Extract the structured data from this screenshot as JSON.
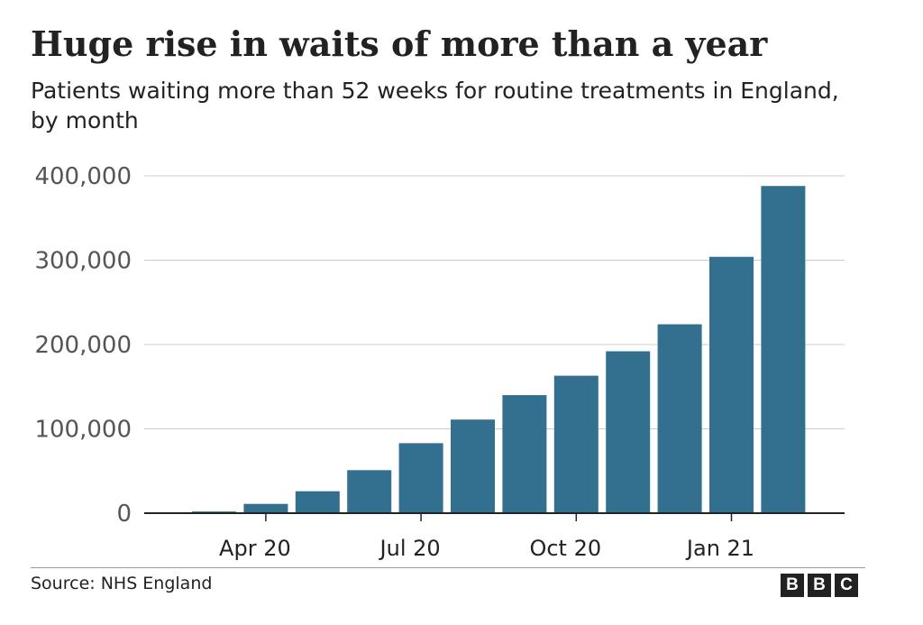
{
  "header": {
    "title": "Huge rise in waits of more than a year",
    "subtitle": "Patients waiting more than 52 weeks for routine treatments in England, by month"
  },
  "footer": {
    "source": "Source: NHS England",
    "logo_letters": [
      "B",
      "B",
      "C"
    ]
  },
  "colors": {
    "bar": "#336f8e",
    "grid": "#cccccc",
    "axis": "#222222",
    "text": "#222222",
    "tick_text": "#555555"
  },
  "chart_data": {
    "type": "bar",
    "title": "Huge rise in waits of more than a year",
    "subtitle": "Patients waiting more than 52 weeks for routine treatments in England, by month",
    "categories": [
      "2020-03",
      "2020-04",
      "2020-05",
      "2020-06",
      "2020-07",
      "2020-08",
      "2020-09",
      "2020-10",
      "2020-11",
      "2020-12",
      "2021-01",
      "2021-02"
    ],
    "values": [
      2000,
      11000,
      26000,
      51000,
      83000,
      111000,
      140000,
      163000,
      192000,
      224000,
      304000,
      388000
    ],
    "x_tick_labels": [
      {
        "category": "2020-04",
        "label": "Apr 20"
      },
      {
        "category": "2020-07",
        "label": "Jul 20"
      },
      {
        "category": "2020-10",
        "label": "Oct 20"
      },
      {
        "category": "2021-01",
        "label": "Jan 21"
      }
    ],
    "y_ticks": [
      0,
      100000,
      200000,
      300000,
      400000
    ],
    "y_tick_labels": [
      "0",
      "100,000",
      "200,000",
      "300,000",
      "400,000"
    ],
    "ylim": [
      0,
      400000
    ],
    "xlabel": "",
    "ylabel": "",
    "grid": true,
    "legend": "none"
  }
}
